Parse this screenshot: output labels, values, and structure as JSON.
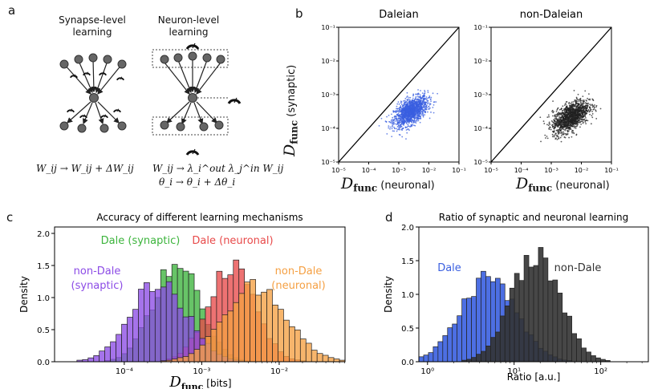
{
  "panel_a": {
    "letter": "a",
    "synapse_title": [
      "Synapse-level",
      "learning"
    ],
    "neuron_title": [
      "Neuron-level",
      "learning"
    ],
    "synapse_eq": "W_ij → W_ij + ΔW_ij",
    "neuron_eq_1": "W_ij → λ_i^out λ_j^in W_ij",
    "neuron_eq_2": "θ_i → θ_i + Δθ_i"
  },
  "panel_b": {
    "letter": "b",
    "ylabel_main": "D",
    "ylabel_sub": "func",
    "ylabel_tail": "(synaptic)",
    "xlabel_main": "D",
    "xlabel_sub": "func",
    "xlabel_tail": "(neuronal)"
  },
  "panel_c": {
    "letter": "c"
  },
  "panel_d": {
    "letter": "d"
  },
  "colors": {
    "dale": "#3a5fe0",
    "nondale": "#333333",
    "green": "#3cb43c",
    "red": "#e84a4a",
    "purple": "#8c4be6",
    "orange": "#f5a043"
  },
  "chart_data": [
    {
      "type": "scatter",
      "title": "Daleian",
      "xscale": "log",
      "yscale": "log",
      "xlim": [
        1e-05,
        0.1
      ],
      "ylim": [
        1e-05,
        0.1
      ],
      "xticks": [
        "10⁻⁵",
        "10⁻⁴",
        "10⁻³",
        "10⁻²",
        "10⁻¹"
      ],
      "yticks": [
        "10⁻⁵",
        "10⁻⁴",
        "10⁻³",
        "10⁻²",
        "10⁻¹"
      ],
      "identity_line": true,
      "cloud": {
        "center_log10": [
          -2.6,
          -3.5
        ],
        "spread_log10": [
          0.28,
          0.22
        ],
        "n_points": 1400,
        "color": "#3a5fe0"
      }
    },
    {
      "type": "scatter",
      "title": "non-Daleian",
      "xscale": "log",
      "yscale": "log",
      "xlim": [
        1e-05,
        0.1
      ],
      "ylim": [
        1e-05,
        0.1
      ],
      "xticks": [
        "10⁻⁵",
        "10⁻⁴",
        "10⁻³",
        "10⁻²",
        "10⁻¹"
      ],
      "yticks": [
        "10⁻⁵",
        "10⁻⁴",
        "10⁻³",
        "10⁻²",
        "10⁻¹"
      ],
      "identity_line": true,
      "cloud": {
        "center_log10": [
          -2.35,
          -3.65
        ],
        "spread_log10": [
          0.3,
          0.24
        ],
        "n_points": 1400,
        "color": "#222222"
      }
    },
    {
      "type": "histogram",
      "title": "Accuracy of different learning mechanisms",
      "xscale": "log",
      "xlim_log10": [
        -4.9,
        -1.15
      ],
      "ylim": [
        0,
        2.1
      ],
      "xlabel_main": "D",
      "xlabel_sub": "func",
      "xlabel_tail": "[bits]",
      "ylabel": "Density",
      "xticks": [
        {
          "log10": -4,
          "label": "10⁻⁴"
        },
        {
          "log10": -3,
          "label": "10⁻³"
        },
        {
          "log10": -2,
          "label": "10⁻²"
        }
      ],
      "yticks": [
        0.0,
        0.5,
        1.0,
        1.5,
        2.0
      ],
      "series": [
        {
          "name": "Dale (synaptic)",
          "color": "#3cb43c",
          "peak_log10": -3.32,
          "sigma": 0.3,
          "amp": 1.58
        },
        {
          "name": "Dale (neuronal)",
          "color": "#e84a4a",
          "peak_log10": -2.62,
          "sigma": 0.3,
          "amp": 1.52
        },
        {
          "name": "non-Dale (synaptic)",
          "color": "#8c4be6",
          "peak_log10": -3.55,
          "sigma": 0.36,
          "amp": 1.25
        },
        {
          "name": "non-Dale (neuronal)",
          "color": "#f5a043",
          "peak_log10": -2.3,
          "sigma": 0.4,
          "amp": 1.18
        }
      ],
      "labels": {
        "green": "Dale (synaptic)",
        "red": "Dale (neuronal)",
        "purple": [
          "non-Dale",
          "(synaptic)"
        ],
        "orange": [
          "non-Dale",
          "(neuronal)"
        ]
      }
    },
    {
      "type": "histogram",
      "title": "Ratio of synaptic and neuronal learning",
      "xscale": "log",
      "xlim_log10": [
        -0.1,
        2.55
      ],
      "ylim": [
        0,
        2.0
      ],
      "xlabel": "Ratio [a.u.]",
      "ylabel": "Density",
      "xticks": [
        {
          "log10": 0,
          "label": "10⁰"
        },
        {
          "log10": 1,
          "label": "10¹"
        },
        {
          "log10": 2,
          "label": "10²"
        }
      ],
      "yticks": [
        0.0,
        0.5,
        1.0,
        1.5,
        2.0
      ],
      "series": [
        {
          "name": "Dale",
          "color": "#3a5fe0",
          "peak_log10": 0.7,
          "sigma": 0.32,
          "amp": 1.25
        },
        {
          "name": "non-Dale",
          "color": "#333333",
          "peak_log10": 1.25,
          "sigma": 0.28,
          "amp": 1.6
        }
      ],
      "labels": {
        "dale": "Dale",
        "nondale": "non-Dale"
      }
    }
  ]
}
